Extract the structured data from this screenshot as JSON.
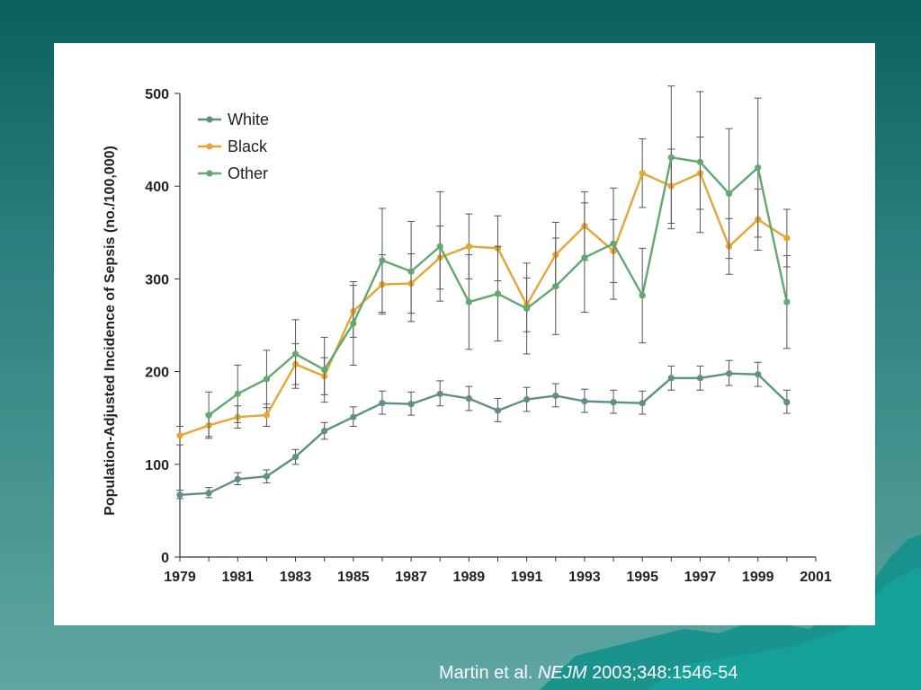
{
  "colors": {
    "background_top": "#0b5f5c",
    "background_bottom": "#5fa6a3",
    "panel": "#ffffff",
    "white_series": "#5e8f8a",
    "black_series": "#e5a632",
    "other_series": "#62a870",
    "error_bars": "#555555",
    "axis": "#333333",
    "citation_text": "#ffffff"
  },
  "citation": {
    "authors": "Martin et al.",
    "journal": "NEJM",
    "reference": "2003;348:1546-54"
  },
  "chart_data": {
    "type": "line",
    "title": "",
    "xlabel": "",
    "ylabel": "Population-Adjusted Incidence of Sepsis (no./100,000)",
    "xlim": [
      1979,
      2001
    ],
    "ylim": [
      0,
      500
    ],
    "x_ticks": [
      1979,
      1981,
      1983,
      1985,
      1987,
      1989,
      1991,
      1993,
      1995,
      1997,
      1999,
      2001
    ],
    "y_ticks": [
      0,
      100,
      200,
      300,
      400,
      500
    ],
    "grid": false,
    "legend": "top-left",
    "error_bars": true,
    "series": [
      {
        "name": "White",
        "color": "#5e8f8a",
        "x": [
          1979,
          1980,
          1981,
          1982,
          1983,
          1984,
          1985,
          1986,
          1987,
          1988,
          1989,
          1990,
          1991,
          1992,
          1993,
          1994,
          1995,
          1996,
          1997,
          1998,
          1999,
          2000
        ],
        "values": [
          67,
          69,
          84,
          87,
          108,
          136,
          151,
          166,
          165,
          176,
          171,
          158,
          170,
          174,
          168,
          167,
          166,
          193,
          193,
          198,
          197,
          167
        ],
        "err_low": [
          63,
          64,
          78,
          80,
          100,
          127,
          141,
          154,
          153,
          163,
          158,
          146,
          157,
          162,
          156,
          155,
          154,
          180,
          180,
          185,
          184,
          155
        ],
        "err_high": [
          72,
          75,
          91,
          94,
          116,
          145,
          162,
          179,
          178,
          190,
          184,
          171,
          183,
          187,
          181,
          180,
          179,
          206,
          206,
          212,
          210,
          180
        ]
      },
      {
        "name": "Black",
        "color": "#e5a632",
        "x": [
          1979,
          1980,
          1981,
          1982,
          1983,
          1984,
          1985,
          1986,
          1987,
          1988,
          1989,
          1990,
          1991,
          1992,
          1993,
          1994,
          1995,
          1996,
          1997,
          1998,
          1999,
          2000
        ],
        "values": [
          131,
          142,
          151,
          153,
          208,
          195,
          265,
          294,
          295,
          323,
          335,
          333,
          272,
          326,
          357,
          330,
          414,
          400,
          414,
          335,
          364,
          344
        ],
        "err_low": [
          121,
          130,
          139,
          141,
          186,
          175,
          237,
          262,
          263,
          289,
          300,
          298,
          243,
          291,
          320,
          296,
          377,
          360,
          375,
          305,
          331,
          313
        ],
        "err_high": [
          141,
          154,
          163,
          165,
          230,
          215,
          293,
          326,
          327,
          357,
          370,
          368,
          301,
          361,
          394,
          364,
          451,
          440,
          453,
          365,
          397,
          375
        ]
      },
      {
        "name": "Other",
        "color": "#62a870",
        "x": [
          1980,
          1981,
          1982,
          1983,
          1984,
          1985,
          1986,
          1987,
          1988,
          1989,
          1990,
          1991,
          1992,
          1993,
          1994,
          1995,
          1996,
          1997,
          1998,
          1999,
          2000
        ],
        "values": [
          153,
          176,
          192,
          219,
          202,
          252,
          320,
          308,
          335,
          275,
          284,
          268,
          292,
          323,
          338,
          282,
          431,
          426,
          392,
          420,
          275
        ],
        "err_low": [
          128,
          145,
          161,
          182,
          167,
          207,
          264,
          254,
          276,
          224,
          233,
          219,
          240,
          264,
          278,
          231,
          354,
          350,
          322,
          345,
          225
        ],
        "err_high": [
          178,
          207,
          223,
          256,
          237,
          297,
          376,
          362,
          394,
          326,
          335,
          317,
          344,
          382,
          398,
          333,
          508,
          502,
          462,
          495,
          325
        ]
      }
    ]
  }
}
